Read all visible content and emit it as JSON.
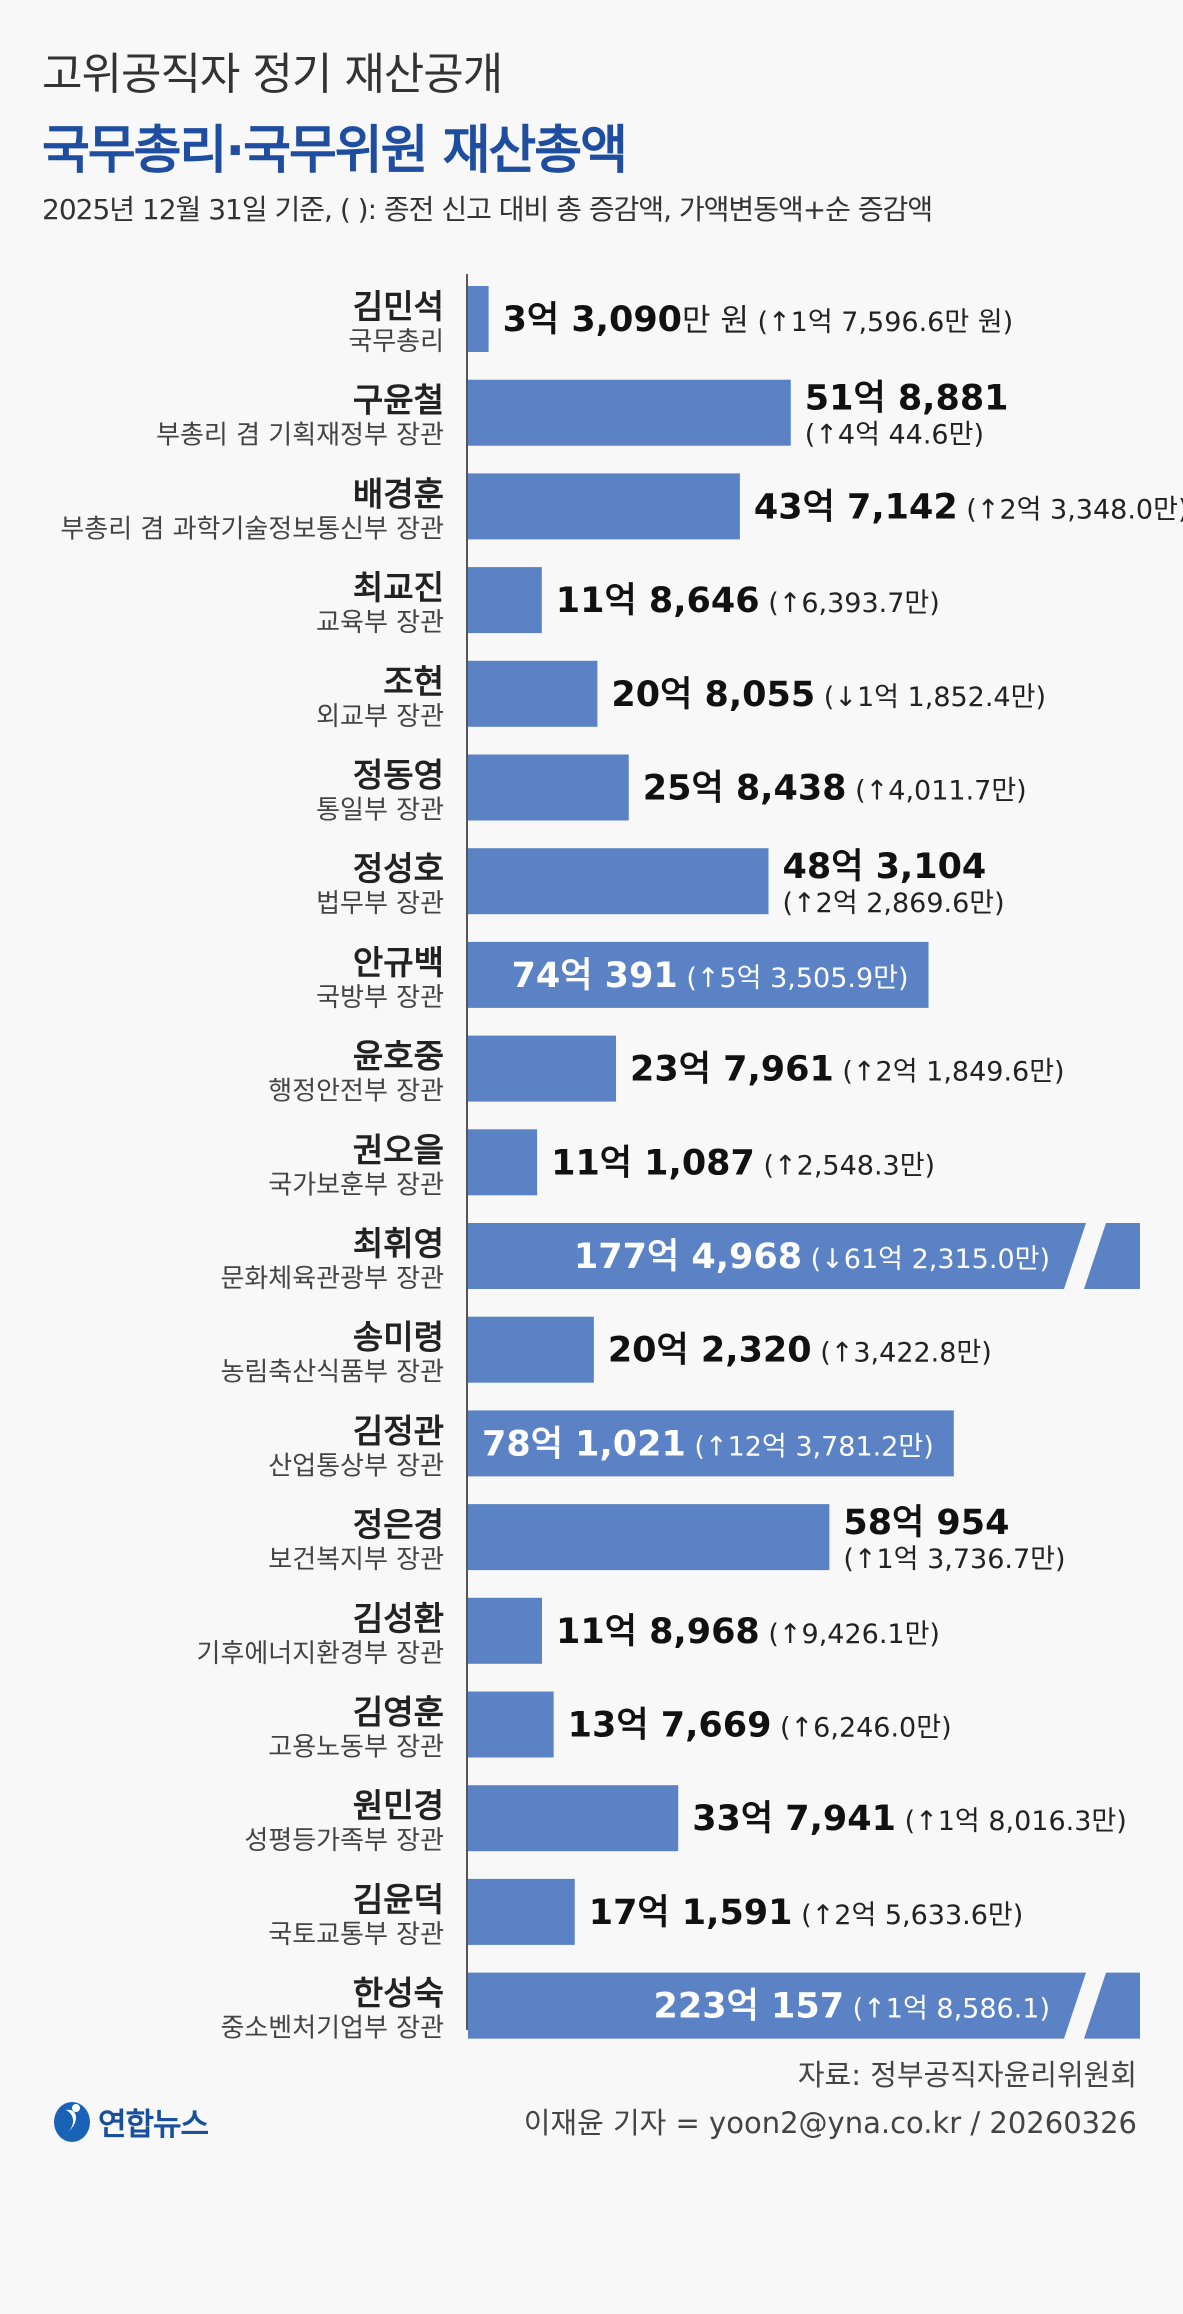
{
  "header": {
    "subtitle": "고위공직자 정기 재산공개",
    "title": "국무총리·국무위원 재산총액",
    "note": "2025년 12월 31일 기준, ( ): 종전 신고 대비 총 증감액, 가액변동액+순 증감액"
  },
  "footer": {
    "source": "자료: 정부공직자윤리위원회",
    "byline": "이재윤 기자 = yoon2@yna.co.kr / 20260326",
    "logo_text": "연합뉴스"
  },
  "colors": {
    "bar": "#5b82c5",
    "title": "#1f4ea0",
    "axis": "#555555"
  },
  "chart_data": {
    "type": "bar",
    "orientation": "horizontal",
    "title": "국무총리·국무위원 재산총액",
    "unit": "만 원",
    "categories": [
      "김민석",
      "구윤철",
      "배경훈",
      "최교진",
      "조현",
      "정동영",
      "정성호",
      "안규백",
      "윤호중",
      "권오을",
      "최휘영",
      "송미령",
      "김정관",
      "정은경",
      "김성환",
      "김영훈",
      "원민경",
      "김윤덕",
      "한성숙"
    ],
    "roles": [
      "국무총리",
      "부총리 겸 기획재정부 장관",
      "부총리 겸 과학기술정보통신부 장관",
      "교육부 장관",
      "외교부 장관",
      "통일부 장관",
      "법무부 장관",
      "국방부 장관",
      "행정안전부 장관",
      "국가보훈부 장관",
      "문화체육관광부 장관",
      "농림축산식품부 장관",
      "산업통상부 장관",
      "보건복지부 장관",
      "기후에너지환경부 장관",
      "고용노동부 장관",
      "성평등가족부 장관",
      "국토교통부 장관",
      "중소벤처기업부 장관"
    ],
    "values": [
      33090,
      518881,
      437142,
      118646,
      208055,
      258438,
      483104,
      740391,
      237961,
      111087,
      1774968,
      202320,
      781021,
      580954,
      118968,
      137669,
      337941,
      171591,
      2230157
    ],
    "value_labels": [
      "3억 3,090",
      "51억 8,881",
      "43억 7,142",
      "11억 8,646",
      "20억 8,055",
      "25억 8,438",
      "48억 3,104",
      "74억 391",
      "23억 7,961",
      "11억 1,087",
      "177억 4,968",
      "20억 2,320",
      "78억 1,021",
      "58억 954",
      "11억 8,968",
      "13억 7,669",
      "33억 7,941",
      "17억 1,591",
      "223억 157"
    ],
    "value_suffix_first": "만 원",
    "changes": [
      "(↑1억 7,596.6만 원)",
      "(↑4억 44.6만)",
      "(↑2억 3,348.0만)",
      "(↑6,393.7만)",
      "(↓1억 1,852.4만)",
      "(↑4,011.7만)",
      "(↑2억 2,869.6만)",
      "(↑5억 3,505.9만)",
      "(↑2억 1,849.6만)",
      "(↑2,548.3만)",
      "(↓61억 2,315.0만)",
      "(↑3,422.8만)",
      "(↑12억 3,781.2만)",
      "(↑1억 3,736.7만)",
      "(↑9,426.1만)",
      "(↑6,246.0만)",
      "(↑1억 8,016.3만)",
      "(↑2억 5,633.6만)",
      "(↑1억 8,586.1)"
    ],
    "changes_values": [
      17596.6,
      40044.6,
      23348.0,
      6393.7,
      -11852.4,
      4011.7,
      22869.6,
      53505.9,
      21849.6,
      2548.3,
      -612315.0,
      3422.8,
      123781.2,
      13736.7,
      9426.1,
      6246.0,
      18016.3,
      25633.6,
      18586.1
    ],
    "broken_axis_bars": [
      "최휘영",
      "한성숙"
    ],
    "xlabel": "",
    "ylabel": ""
  }
}
